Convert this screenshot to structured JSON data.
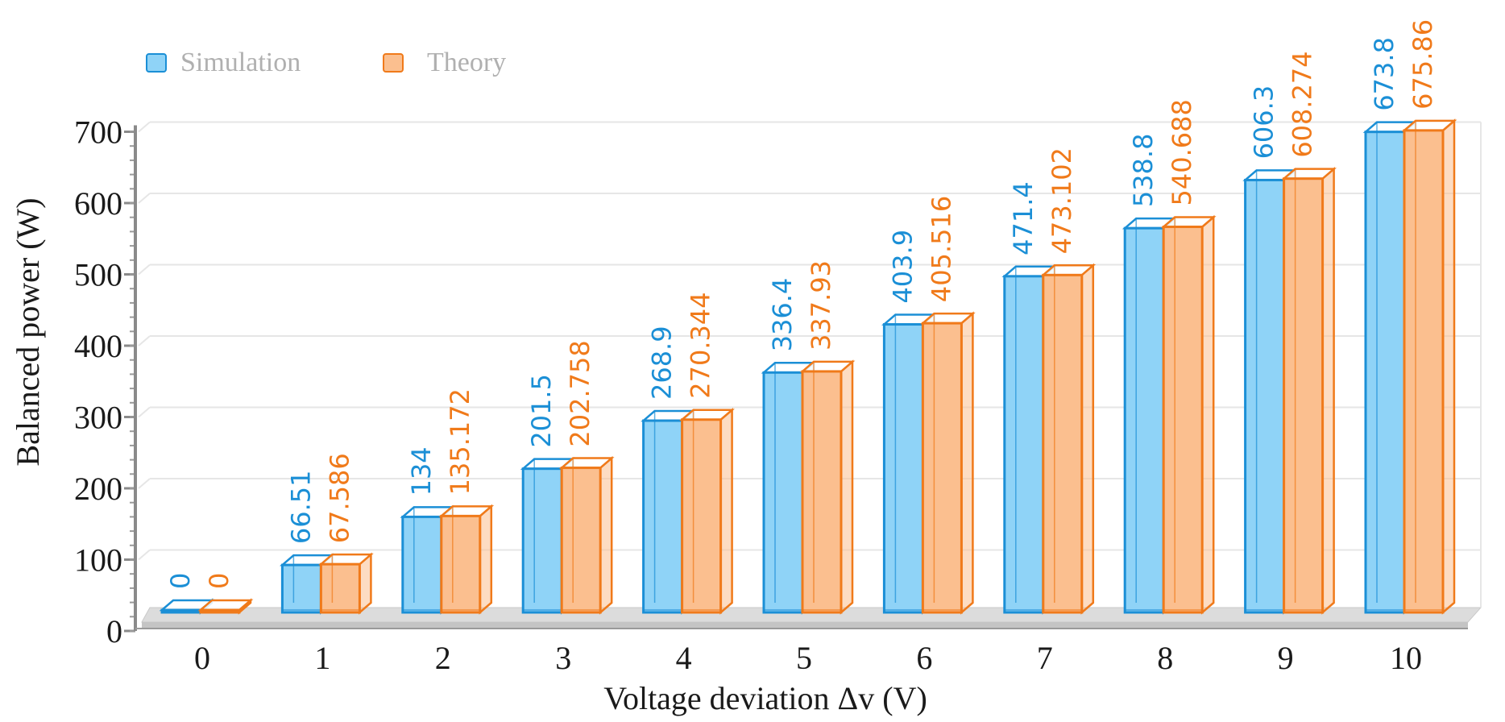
{
  "chart_data": {
    "type": "bar",
    "style": "3d-clustered-column",
    "categories": [
      "0",
      "1",
      "2",
      "3",
      "4",
      "5",
      "6",
      "7",
      "8",
      "9",
      "10"
    ],
    "series": [
      {
        "name": "Simulation",
        "values": [
          0,
          66.51,
          134,
          201.5,
          268.9,
          336.4,
          403.9,
          471.4,
          538.8,
          606.3,
          673.8
        ],
        "labels": [
          "0",
          "66.51",
          "134",
          "201.5",
          "268.9",
          "336.4",
          "403.9",
          "471.4",
          "538.8",
          "606.3",
          "673.8"
        ],
        "fill": "#8fd3f7",
        "stroke": "#1b8fd6",
        "label_color": "#1b8fd6"
      },
      {
        "name": "Theory",
        "values": [
          0,
          67.586,
          135.172,
          202.758,
          270.344,
          337.93,
          405.516,
          473.102,
          540.688,
          608.274,
          675.86
        ],
        "labels": [
          "0",
          "67.586",
          "135.172",
          "202.758",
          "270.344",
          "337.93",
          "405.516",
          "473.102",
          "540.688",
          "608.274",
          "675.86"
        ],
        "fill": "#fbbf8f",
        "stroke": "#f07a1a",
        "label_color": "#f07a1a"
      }
    ],
    "xlabel": "Voltage deviation Δv (V)",
    "ylabel": "Balanced power (W)",
    "yticks": [
      "0",
      "100",
      "200",
      "300",
      "400",
      "500",
      "600",
      "700"
    ],
    "ylim": [
      0,
      700
    ],
    "grid": true,
    "legend_position": "top-left"
  }
}
